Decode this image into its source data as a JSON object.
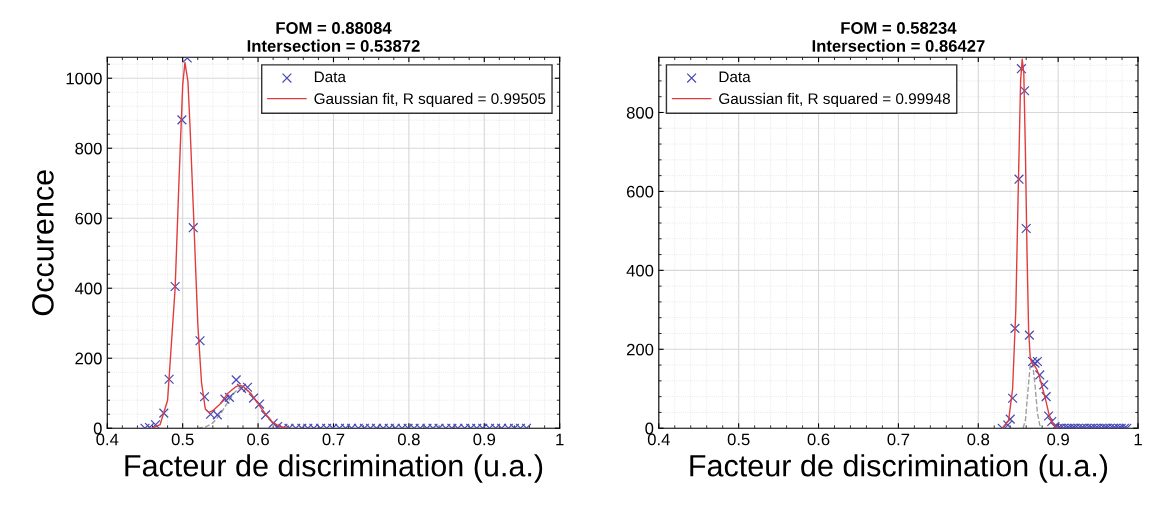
{
  "chart_data": [
    {
      "type": "scatter",
      "title": "FOM = 0.88084\nIntersection = 0.53872",
      "xlabel": "Facteur de discrimination (u.a.)",
      "ylabel": "Occurence",
      "xlim": [
        0.4,
        1
      ],
      "xticks": [
        0.4,
        0.5,
        0.6,
        0.7,
        0.8,
        0.9,
        1
      ],
      "ylim": [
        0,
        1060
      ],
      "yticks": [
        0,
        200,
        400,
        600,
        800,
        1000
      ],
      "grid": true,
      "legend": "top right",
      "series": [
        {
          "name": "Data",
          "marker": "cross",
          "color": "#4b4bb4",
          "x": [
            0.45,
            0.456,
            0.464,
            0.475,
            0.482,
            0.49,
            0.499,
            0.506,
            0.514,
            0.523,
            0.529,
            0.537,
            0.546,
            0.556,
            0.562,
            0.571,
            0.578,
            0.586,
            0.594,
            0.602,
            0.61,
            0.62,
            0.626,
            0.633,
            0.641,
            0.65,
            0.658,
            0.666,
            0.674,
            0.683,
            0.691,
            0.699,
            0.708,
            0.716,
            0.724,
            0.733,
            0.741,
            0.749,
            0.757,
            0.766,
            0.774,
            0.782,
            0.791,
            0.799,
            0.807,
            0.815,
            0.824,
            0.832,
            0.84,
            0.849,
            0.857,
            0.865,
            0.874,
            0.882,
            0.89,
            0.898,
            0.907,
            0.915,
            0.923,
            0.932,
            0.94,
            0.948,
            0.956
          ],
          "values": [
            0,
            2,
            10,
            43,
            140,
            405,
            881,
            1058,
            573,
            250,
            90,
            40,
            38,
            83,
            88,
            138,
            114,
            117,
            86,
            69,
            38,
            14,
            5,
            0,
            0,
            0,
            0,
            0,
            0,
            0,
            0,
            0,
            0,
            0,
            0,
            0,
            0,
            0,
            0,
            0,
            0,
            0,
            0,
            0,
            0,
            0,
            0,
            0,
            0,
            0,
            0,
            0,
            0,
            0,
            0,
            0,
            0,
            0,
            0,
            0,
            0,
            0,
            0
          ]
        },
        {
          "name": "Gaussian fit, R squared = 0.99505",
          "type": "line",
          "marker": "none",
          "line_style": "solid",
          "color": "#e03c3c",
          "x": [
            0.46,
            0.47,
            0.48,
            0.49,
            0.495,
            0.5,
            0.503,
            0.507,
            0.51,
            0.515,
            0.52,
            0.525,
            0.53,
            0.535,
            0.54,
            0.55,
            0.56,
            0.57,
            0.575,
            0.58,
            0.59,
            0.6,
            0.61,
            0.62,
            0.63,
            0.64
          ],
          "values": [
            0,
            10,
            80,
            400,
            700,
            980,
            1045,
            990,
            850,
            580,
            300,
            130,
            55,
            45,
            50,
            70,
            100,
            118,
            122,
            120,
            100,
            70,
            40,
            15,
            4,
            0
          ]
        },
        {
          "type": "line",
          "marker": "none",
          "line_style": "dashed",
          "color": "#a0a0a0",
          "x": [
            0.52,
            0.53,
            0.54,
            0.55,
            0.56,
            0.57,
            0.575,
            0.58,
            0.59,
            0.6,
            0.61,
            0.62,
            0.63,
            0.64
          ],
          "values": [
            0,
            3,
            15,
            40,
            75,
            105,
            115,
            118,
            100,
            70,
            40,
            15,
            4,
            0
          ]
        }
      ]
    },
    {
      "type": "scatter",
      "title": "FOM = 0.58234\nIntersection = 0.86427",
      "xlabel": "Facteur de discrimination (u.a.)",
      "xlim": [
        0.4,
        1
      ],
      "xticks": [
        0.4,
        0.5,
        0.6,
        0.7,
        0.8,
        0.9,
        1
      ],
      "ylim": [
        0,
        940
      ],
      "yticks": [
        0,
        200,
        400,
        600,
        800
      ],
      "grid": true,
      "legend": "top left",
      "series": [
        {
          "name": "Data",
          "marker": "cross",
          "color": "#4b4bb4",
          "x": [
            0.83,
            0.837,
            0.84,
            0.843,
            0.846,
            0.851,
            0.854,
            0.858,
            0.86,
            0.864,
            0.868,
            0.871,
            0.874,
            0.877,
            0.882,
            0.885,
            0.888,
            0.892,
            0.896,
            0.9,
            0.903,
            0.907,
            0.911,
            0.914,
            0.918,
            0.921,
            0.925,
            0.929,
            0.932,
            0.936,
            0.94,
            0.943,
            0.947,
            0.95,
            0.954,
            0.958,
            0.961,
            0.965,
            0.969,
            0.972,
            0.976,
            0.979,
            0.983,
            0.986
          ],
          "values": [
            0,
            8,
            23,
            76,
            253,
            631,
            911,
            855,
            506,
            236,
            169,
            165,
            169,
            135,
            110,
            80,
            31,
            17,
            4,
            0,
            0,
            0,
            0,
            0,
            0,
            0,
            0,
            0,
            0,
            0,
            0,
            0,
            0,
            0,
            0,
            0,
            0,
            0,
            0,
            0,
            0,
            0,
            0,
            0
          ]
        },
        {
          "name": "Gaussian fit, R squared = 0.99948",
          "type": "line",
          "marker": "none",
          "line_style": "solid",
          "color": "#e03c3c",
          "x": [
            0.83,
            0.838,
            0.843,
            0.847,
            0.85,
            0.853,
            0.855,
            0.857,
            0.859,
            0.861,
            0.863,
            0.865,
            0.867,
            0.87,
            0.873,
            0.876,
            0.88,
            0.884,
            0.888,
            0.892,
            0.896,
            0.9
          ],
          "values": [
            0,
            20,
            100,
            300,
            600,
            880,
            935,
            900,
            700,
            450,
            250,
            180,
            165,
            160,
            150,
            135,
            105,
            75,
            40,
            15,
            5,
            0
          ]
        },
        {
          "type": "line",
          "marker": "none",
          "line_style": "dashed",
          "color": "#a0a0a0",
          "x": [
            0.856,
            0.859,
            0.862,
            0.865,
            0.868,
            0.871,
            0.874,
            0.877,
            0.88
          ],
          "values": [
            0,
            20,
            90,
            160,
            165,
            110,
            40,
            8,
            0
          ]
        }
      ]
    }
  ]
}
